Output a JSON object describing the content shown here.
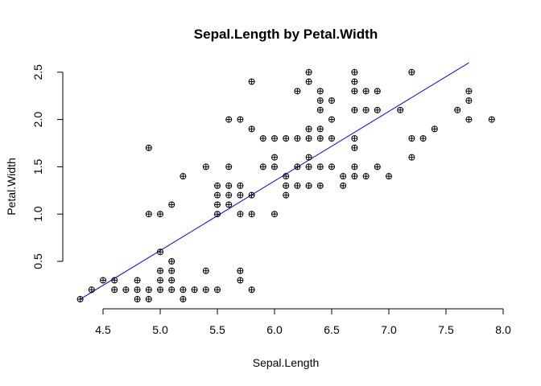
{
  "chart_data": {
    "type": "scatter",
    "title": "Sepal.Length by Petal.Width",
    "xlabel": "Sepal.Length",
    "ylabel": "Petal.Width",
    "xlim": [
      4.3,
      7.9
    ],
    "ylim": [
      0.1,
      2.5
    ],
    "xticks": [
      4.5,
      5.0,
      5.5,
      6.0,
      6.5,
      7.0,
      7.5,
      8.0
    ],
    "xtick_labels": [
      "4.5",
      "5.0",
      "5.5",
      "6.0",
      "6.5",
      "7.0",
      "7.5",
      "8.0"
    ],
    "yticks": [
      0.5,
      1.0,
      1.5,
      2.0,
      2.5
    ],
    "ytick_labels": [
      "0.5",
      "1.0",
      "1.5",
      "2.0",
      "2.5"
    ],
    "grid": false,
    "marker": "circle-plus",
    "marker_color": "#000000",
    "fit_line": {
      "color": "#0000ff",
      "x": [
        4.3,
        7.7
      ],
      "y": [
        0.1,
        2.6
      ]
    },
    "points": [
      {
        "x": 4.3,
        "y": 0.1
      },
      {
        "x": 4.4,
        "y": 0.2
      },
      {
        "x": 4.5,
        "y": 0.3
      },
      {
        "x": 4.6,
        "y": 0.2
      },
      {
        "x": 4.6,
        "y": 0.3
      },
      {
        "x": 4.7,
        "y": 0.2
      },
      {
        "x": 4.8,
        "y": 0.1
      },
      {
        "x": 4.8,
        "y": 0.2
      },
      {
        "x": 4.8,
        "y": 0.3
      },
      {
        "x": 4.9,
        "y": 0.1
      },
      {
        "x": 4.9,
        "y": 0.2
      },
      {
        "x": 4.9,
        "y": 1.0
      },
      {
        "x": 4.9,
        "y": 1.7
      },
      {
        "x": 5.0,
        "y": 0.2
      },
      {
        "x": 5.0,
        "y": 0.3
      },
      {
        "x": 5.0,
        "y": 0.4
      },
      {
        "x": 5.0,
        "y": 0.6
      },
      {
        "x": 5.0,
        "y": 1.0
      },
      {
        "x": 5.1,
        "y": 0.2
      },
      {
        "x": 5.1,
        "y": 0.3
      },
      {
        "x": 5.1,
        "y": 0.4
      },
      {
        "x": 5.1,
        "y": 0.5
      },
      {
        "x": 5.1,
        "y": 1.1
      },
      {
        "x": 5.2,
        "y": 0.1
      },
      {
        "x": 5.2,
        "y": 0.2
      },
      {
        "x": 5.2,
        "y": 1.4
      },
      {
        "x": 5.3,
        "y": 0.2
      },
      {
        "x": 5.4,
        "y": 0.2
      },
      {
        "x": 5.4,
        "y": 0.4
      },
      {
        "x": 5.4,
        "y": 1.5
      },
      {
        "x": 5.5,
        "y": 0.2
      },
      {
        "x": 5.5,
        "y": 1.0
      },
      {
        "x": 5.5,
        "y": 1.1
      },
      {
        "x": 5.5,
        "y": 1.2
      },
      {
        "x": 5.5,
        "y": 1.3
      },
      {
        "x": 5.6,
        "y": 1.1
      },
      {
        "x": 5.6,
        "y": 1.2
      },
      {
        "x": 5.6,
        "y": 1.3
      },
      {
        "x": 5.6,
        "y": 1.5
      },
      {
        "x": 5.6,
        "y": 2.0
      },
      {
        "x": 5.7,
        "y": 0.3
      },
      {
        "x": 5.7,
        "y": 0.4
      },
      {
        "x": 5.7,
        "y": 1.0
      },
      {
        "x": 5.7,
        "y": 1.2
      },
      {
        "x": 5.7,
        "y": 1.3
      },
      {
        "x": 5.7,
        "y": 2.0
      },
      {
        "x": 5.8,
        "y": 0.2
      },
      {
        "x": 5.8,
        "y": 1.0
      },
      {
        "x": 5.8,
        "y": 1.2
      },
      {
        "x": 5.8,
        "y": 1.9
      },
      {
        "x": 5.8,
        "y": 2.4
      },
      {
        "x": 5.9,
        "y": 1.5
      },
      {
        "x": 5.9,
        "y": 1.8
      },
      {
        "x": 6.0,
        "y": 1.0
      },
      {
        "x": 6.0,
        "y": 1.5
      },
      {
        "x": 6.0,
        "y": 1.6
      },
      {
        "x": 6.0,
        "y": 1.8
      },
      {
        "x": 6.1,
        "y": 1.2
      },
      {
        "x": 6.1,
        "y": 1.3
      },
      {
        "x": 6.1,
        "y": 1.4
      },
      {
        "x": 6.1,
        "y": 1.8
      },
      {
        "x": 6.2,
        "y": 1.3
      },
      {
        "x": 6.2,
        "y": 1.5
      },
      {
        "x": 6.2,
        "y": 1.8
      },
      {
        "x": 6.2,
        "y": 2.3
      },
      {
        "x": 6.3,
        "y": 1.3
      },
      {
        "x": 6.3,
        "y": 1.5
      },
      {
        "x": 6.3,
        "y": 1.6
      },
      {
        "x": 6.3,
        "y": 1.8
      },
      {
        "x": 6.3,
        "y": 1.9
      },
      {
        "x": 6.3,
        "y": 2.4
      },
      {
        "x": 6.3,
        "y": 2.5
      },
      {
        "x": 6.4,
        "y": 1.3
      },
      {
        "x": 6.4,
        "y": 1.5
      },
      {
        "x": 6.4,
        "y": 1.8
      },
      {
        "x": 6.4,
        "y": 1.9
      },
      {
        "x": 6.4,
        "y": 2.1
      },
      {
        "x": 6.4,
        "y": 2.2
      },
      {
        "x": 6.4,
        "y": 2.3
      },
      {
        "x": 6.5,
        "y": 1.5
      },
      {
        "x": 6.5,
        "y": 1.8
      },
      {
        "x": 6.5,
        "y": 2.0
      },
      {
        "x": 6.5,
        "y": 2.2
      },
      {
        "x": 6.6,
        "y": 1.3
      },
      {
        "x": 6.6,
        "y": 1.4
      },
      {
        "x": 6.7,
        "y": 1.4
      },
      {
        "x": 6.7,
        "y": 1.5
      },
      {
        "x": 6.7,
        "y": 1.7
      },
      {
        "x": 6.7,
        "y": 1.8
      },
      {
        "x": 6.7,
        "y": 2.1
      },
      {
        "x": 6.7,
        "y": 2.3
      },
      {
        "x": 6.7,
        "y": 2.4
      },
      {
        "x": 6.7,
        "y": 2.5
      },
      {
        "x": 6.8,
        "y": 1.4
      },
      {
        "x": 6.8,
        "y": 2.1
      },
      {
        "x": 6.8,
        "y": 2.3
      },
      {
        "x": 6.9,
        "y": 1.5
      },
      {
        "x": 6.9,
        "y": 2.1
      },
      {
        "x": 6.9,
        "y": 2.3
      },
      {
        "x": 7.0,
        "y": 1.4
      },
      {
        "x": 7.1,
        "y": 2.1
      },
      {
        "x": 7.2,
        "y": 1.6
      },
      {
        "x": 7.2,
        "y": 1.8
      },
      {
        "x": 7.2,
        "y": 2.5
      },
      {
        "x": 7.3,
        "y": 1.8
      },
      {
        "x": 7.4,
        "y": 1.9
      },
      {
        "x": 7.6,
        "y": 2.1
      },
      {
        "x": 7.7,
        "y": 2.0
      },
      {
        "x": 7.7,
        "y": 2.2
      },
      {
        "x": 7.7,
        "y": 2.3
      },
      {
        "x": 7.9,
        "y": 2.0
      }
    ]
  }
}
